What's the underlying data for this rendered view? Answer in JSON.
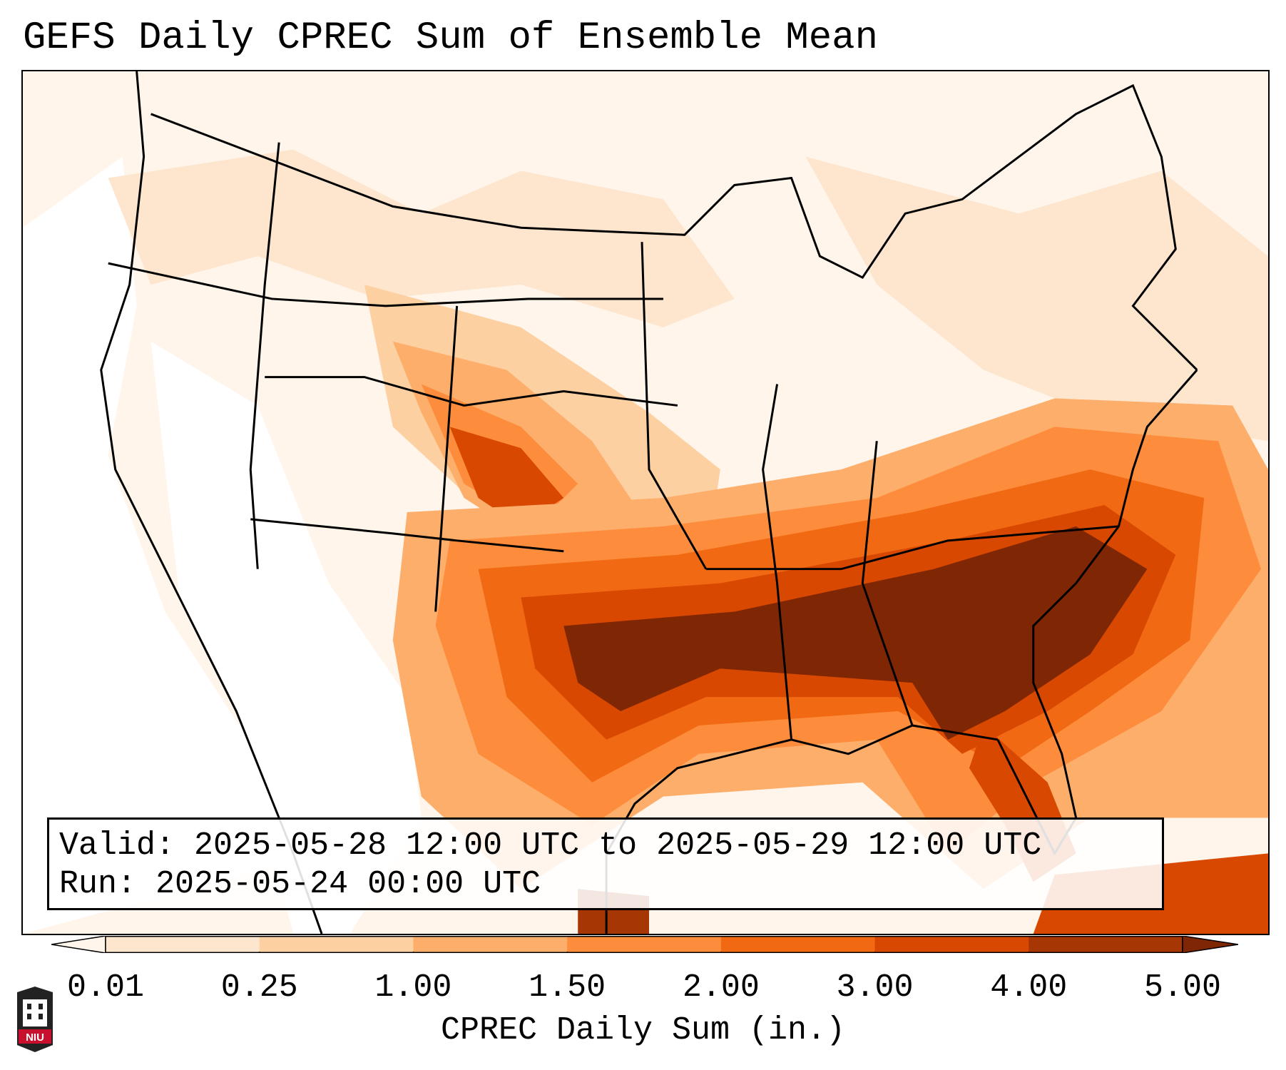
{
  "title": "GEFS Daily CPREC Sum of Ensemble Mean",
  "info": {
    "valid_label": "Valid:",
    "valid_value": "2025-05-28 12:00 UTC to 2025-05-29 12:00 UTC",
    "run_label": "Run:",
    "run_value": "2025-05-24 00:00 UTC"
  },
  "colorbar": {
    "label": "CPREC Daily Sum (in.)",
    "ticks": [
      "0.01",
      "0.25",
      "1.00",
      "1.50",
      "2.00",
      "3.00",
      "4.00",
      "5.00"
    ],
    "colors": [
      "#fee6ce",
      "#fdd0a2",
      "#fdae6b",
      "#fd8d3c",
      "#f16913",
      "#d94801",
      "#a63603"
    ],
    "under_color": "#fff5eb",
    "over_color": "#7f2704"
  },
  "logo": {
    "text": "NIU",
    "color": "#c8102e"
  }
}
